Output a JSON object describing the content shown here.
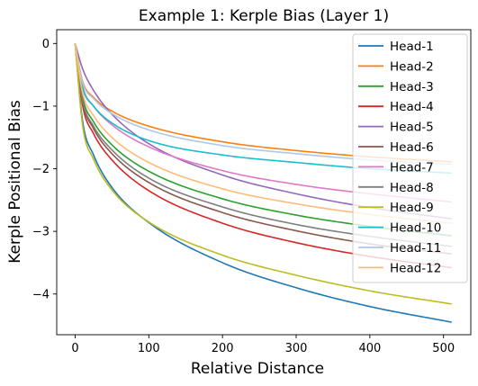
{
  "chart_data": {
    "type": "line",
    "title": "Example 1: Kerple Bias (Layer 1)",
    "xlabel": "Relative Distance",
    "ylabel": "Kerple Positional Bias",
    "xlim": [
      -25,
      537
    ],
    "ylim": [
      -4.65,
      0.22
    ],
    "xticks": [
      0,
      100,
      200,
      300,
      400,
      500
    ],
    "yticks": [
      0,
      -1,
      -2,
      -3,
      -4
    ],
    "xtick_labels": [
      "0",
      "100",
      "200",
      "300",
      "400",
      "500"
    ],
    "ytick_labels": [
      "0",
      "−1",
      "−2",
      "−3",
      "−4"
    ],
    "grid": false,
    "legend_position": "top-right",
    "x_range": [
      0,
      511
    ],
    "series": [
      {
        "name": "Head-1",
        "color": "#1f77b4",
        "r1": 0.0,
        "r2": 0.0,
        "x": [
          0,
          10,
          25,
          50,
          100,
          200,
          300,
          400,
          511
        ],
        "y": [
          0,
          -1.23,
          -1.78,
          -2.3,
          -2.86,
          -3.5,
          -3.9,
          -4.2,
          -4.45
        ]
      },
      {
        "name": "Head-2",
        "color": "#ff7f0e",
        "r1": 0.0,
        "r2": 0.0,
        "x": [
          0,
          10,
          25,
          50,
          100,
          200,
          300,
          400,
          511
        ],
        "y": [
          0,
          -0.6,
          -0.86,
          -1.08,
          -1.32,
          -1.57,
          -1.71,
          -1.81,
          -1.89
        ]
      },
      {
        "name": "Head-3",
        "color": "#2ca02c",
        "r1": 0.0,
        "r2": 0.0,
        "x": [
          0,
          10,
          25,
          50,
          100,
          200,
          300,
          400,
          511
        ],
        "y": [
          0,
          -0.85,
          -1.25,
          -1.62,
          -2.04,
          -2.48,
          -2.74,
          -2.92,
          -3.07
        ]
      },
      {
        "name": "Head-4",
        "color": "#d62728",
        "r1": 0.0,
        "r2": 0.0,
        "x": [
          0,
          10,
          25,
          50,
          100,
          200,
          300,
          400,
          511
        ],
        "y": [
          0,
          -0.98,
          -1.44,
          -1.86,
          -2.35,
          -2.87,
          -3.18,
          -3.4,
          -3.58
        ]
      },
      {
        "name": "Head-5",
        "color": "#9467bd",
        "r1": 0.0,
        "r2": 0.0,
        "x": [
          0,
          10,
          25,
          50,
          100,
          200,
          300,
          400,
          511
        ],
        "y": [
          0,
          -0.4,
          -0.75,
          -1.13,
          -1.6,
          -2.1,
          -2.4,
          -2.62,
          -2.8
        ]
      },
      {
        "name": "Head-6",
        "color": "#8c564b",
        "r1": 0.0,
        "r2": 0.0,
        "x": [
          0,
          10,
          25,
          50,
          100,
          200,
          300,
          400,
          511
        ],
        "y": [
          0,
          -0.92,
          -1.36,
          -1.76,
          -2.22,
          -2.7,
          -2.99,
          -3.2,
          -3.36
        ]
      },
      {
        "name": "Head-7",
        "color": "#e377c2",
        "r1": 0.0,
        "r2": 0.0,
        "x": [
          0,
          10,
          25,
          50,
          100,
          200,
          300,
          400,
          511
        ],
        "y": [
          0,
          -0.68,
          -1.0,
          -1.3,
          -1.65,
          -2.03,
          -2.25,
          -2.4,
          -2.53
        ]
      },
      {
        "name": "Head-8",
        "color": "#7f7f7f",
        "r1": 0.0,
        "r2": 0.0,
        "x": [
          0,
          10,
          25,
          50,
          100,
          200,
          300,
          400,
          511
        ],
        "y": [
          0,
          -0.9,
          -1.32,
          -1.7,
          -2.15,
          -2.61,
          -2.89,
          -3.08,
          -3.24
        ]
      },
      {
        "name": "Head-9",
        "color": "#bcbd22",
        "r1": 0.0,
        "r2": 0.0,
        "x": [
          0,
          10,
          25,
          50,
          100,
          200,
          300,
          400,
          511
        ],
        "y": [
          0,
          -1.3,
          -1.85,
          -2.34,
          -2.85,
          -3.38,
          -3.7,
          -3.95,
          -4.16
        ]
      },
      {
        "name": "Head-10",
        "color": "#17becf",
        "r1": 0.0,
        "r2": 0.0,
        "x": [
          0,
          10,
          25,
          50,
          100,
          200,
          300,
          400,
          511
        ],
        "y": [
          0,
          -0.7,
          -1.0,
          -1.27,
          -1.55,
          -1.78,
          -1.9,
          -2.0,
          -2.07
        ]
      },
      {
        "name": "Head-11",
        "color": "#aec7e8",
        "r1": 0.0,
        "r2": 0.0,
        "x": [
          0,
          10,
          25,
          50,
          100,
          200,
          300,
          400,
          511
        ],
        "y": [
          0,
          -0.62,
          -0.88,
          -1.12,
          -1.38,
          -1.63,
          -1.76,
          -1.86,
          -1.93
        ]
      },
      {
        "name": "Head-12",
        "color": "#ffbb78",
        "r1": 0.0,
        "r2": 0.0,
        "x": [
          0,
          10,
          25,
          50,
          100,
          200,
          300,
          400,
          511
        ],
        "y": [
          0,
          -0.78,
          -1.15,
          -1.5,
          -1.9,
          -2.32,
          -2.56,
          -2.73,
          -2.87
        ]
      }
    ]
  }
}
